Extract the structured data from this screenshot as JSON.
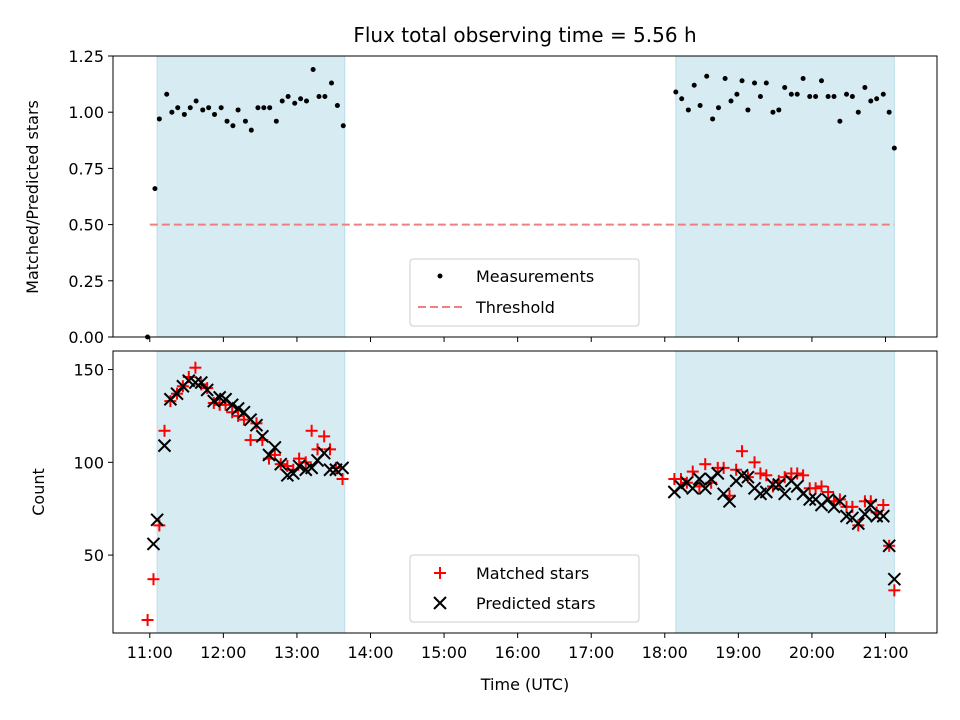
{
  "chart_data": [
    {
      "type": "scatter",
      "title": "Flux total observing time = 5.56 h",
      "ylabel": "Matched/Predicted stars",
      "xlabel": "",
      "ylim": [
        0,
        1.25
      ],
      "yticks": [
        "0.00",
        "0.25",
        "0.50",
        "0.75",
        "1.00",
        "1.25"
      ],
      "ytick_values": [
        0,
        0.25,
        0.5,
        0.75,
        1.0,
        1.25
      ],
      "shaded_intervals": [
        [
          11.1,
          13.65
        ],
        [
          18.15,
          21.12
        ]
      ],
      "threshold": {
        "label": "Threshold",
        "value": 0.5,
        "x_range": [
          11.0,
          21.12
        ],
        "color": "#f08080"
      },
      "legend": {
        "position": "bottom-center",
        "entries": [
          "Measurements",
          "Threshold"
        ]
      },
      "series": [
        {
          "name": "Measurements",
          "color": "#000000",
          "points": [
            [
              10.97,
              0.0
            ],
            [
              11.07,
              0.66
            ],
            [
              11.13,
              0.97
            ],
            [
              11.23,
              1.08
            ],
            [
              11.3,
              1.0
            ],
            [
              11.38,
              1.02
            ],
            [
              11.47,
              0.99
            ],
            [
              11.55,
              1.02
            ],
            [
              11.63,
              1.05
            ],
            [
              11.72,
              1.01
            ],
            [
              11.8,
              1.02
            ],
            [
              11.88,
              0.99
            ],
            [
              11.97,
              1.02
            ],
            [
              12.05,
              0.96
            ],
            [
              12.13,
              0.94
            ],
            [
              12.2,
              1.01
            ],
            [
              12.3,
              0.96
            ],
            [
              12.38,
              0.92
            ],
            [
              12.47,
              1.02
            ],
            [
              12.55,
              1.02
            ],
            [
              12.63,
              1.02
            ],
            [
              12.72,
              0.96
            ],
            [
              12.8,
              1.05
            ],
            [
              12.88,
              1.07
            ],
            [
              12.97,
              1.04
            ],
            [
              13.05,
              1.06
            ],
            [
              13.13,
              1.05
            ],
            [
              13.22,
              1.19
            ],
            [
              13.3,
              1.07
            ],
            [
              13.38,
              1.07
            ],
            [
              13.47,
              1.13
            ],
            [
              13.55,
              1.03
            ],
            [
              13.63,
              0.94
            ],
            [
              18.15,
              1.09
            ],
            [
              18.23,
              1.06
            ],
            [
              18.32,
              1.01
            ],
            [
              18.4,
              1.12
            ],
            [
              18.48,
              1.03
            ],
            [
              18.57,
              1.16
            ],
            [
              18.65,
              0.97
            ],
            [
              18.73,
              1.02
            ],
            [
              18.82,
              1.15
            ],
            [
              18.9,
              1.05
            ],
            [
              18.98,
              1.08
            ],
            [
              19.05,
              1.14
            ],
            [
              19.13,
              1.01
            ],
            [
              19.22,
              1.13
            ],
            [
              19.3,
              1.07
            ],
            [
              19.38,
              1.13
            ],
            [
              19.47,
              1.0
            ],
            [
              19.55,
              1.01
            ],
            [
              19.63,
              1.11
            ],
            [
              19.72,
              1.08
            ],
            [
              19.8,
              1.08
            ],
            [
              19.88,
              1.15
            ],
            [
              19.97,
              1.07
            ],
            [
              20.05,
              1.07
            ],
            [
              20.13,
              1.14
            ],
            [
              20.22,
              1.07
            ],
            [
              20.3,
              1.07
            ],
            [
              20.38,
              0.96
            ],
            [
              20.47,
              1.08
            ],
            [
              20.55,
              1.07
            ],
            [
              20.63,
              1.0
            ],
            [
              20.72,
              1.11
            ],
            [
              20.8,
              1.05
            ],
            [
              20.88,
              1.06
            ],
            [
              20.97,
              1.08
            ],
            [
              21.05,
              1.0
            ],
            [
              21.12,
              0.84
            ]
          ]
        }
      ]
    },
    {
      "type": "scatter",
      "title": "",
      "ylabel": "Count",
      "xlabel": "Time (UTC)",
      "ylim": [
        8,
        160
      ],
      "xlim": [
        10.5,
        21.7
      ],
      "yticks": [
        "50",
        "100",
        "150"
      ],
      "ytick_values": [
        50,
        100,
        150
      ],
      "xticks": [
        "11:00",
        "12:00",
        "13:00",
        "14:00",
        "15:00",
        "16:00",
        "17:00",
        "18:00",
        "19:00",
        "20:00",
        "21:00"
      ],
      "xtick_values": [
        11,
        12,
        13,
        14,
        15,
        16,
        17,
        18,
        19,
        20,
        21
      ],
      "shaded_intervals": [
        [
          11.1,
          13.65
        ],
        [
          18.15,
          21.12
        ]
      ],
      "legend": {
        "position": "bottom-center",
        "entries": [
          "Matched stars",
          "Predicted stars"
        ]
      },
      "series": [
        {
          "name": "Matched stars",
          "marker": "+",
          "color": "#ff0000",
          "points": [
            [
              10.97,
              15
            ],
            [
              11.05,
              37
            ],
            [
              11.13,
              66
            ],
            [
              11.2,
              117
            ],
            [
              11.28,
              133
            ],
            [
              11.37,
              137
            ],
            [
              11.45,
              141
            ],
            [
              11.53,
              146
            ],
            [
              11.62,
              151
            ],
            [
              11.7,
              142
            ],
            [
              11.78,
              140
            ],
            [
              11.87,
              132
            ],
            [
              11.95,
              131
            ],
            [
              12.03,
              131
            ],
            [
              12.12,
              127
            ],
            [
              12.2,
              125
            ],
            [
              12.28,
              123
            ],
            [
              12.37,
              112
            ],
            [
              12.45,
              121
            ],
            [
              12.53,
              112
            ],
            [
              12.62,
              102
            ],
            [
              12.7,
              104
            ],
            [
              12.78,
              99
            ],
            [
              12.87,
              98
            ],
            [
              12.95,
              96
            ],
            [
              13.03,
              102
            ],
            [
              13.12,
              100
            ],
            [
              13.2,
              117
            ],
            [
              13.28,
              107
            ],
            [
              13.37,
              114
            ],
            [
              13.45,
              107
            ],
            [
              13.53,
              97
            ],
            [
              13.62,
              91
            ],
            [
              18.13,
              91
            ],
            [
              18.22,
              91
            ],
            [
              18.3,
              89
            ],
            [
              18.38,
              95
            ],
            [
              18.47,
              87
            ],
            [
              18.55,
              99
            ],
            [
              18.63,
              89
            ],
            [
              18.72,
              97
            ],
            [
              18.8,
              97
            ],
            [
              18.88,
              82
            ],
            [
              18.97,
              96
            ],
            [
              19.05,
              106
            ],
            [
              19.13,
              92
            ],
            [
              19.22,
              100
            ],
            [
              19.3,
              94
            ],
            [
              19.38,
              93
            ],
            [
              19.47,
              87
            ],
            [
              19.55,
              90
            ],
            [
              19.63,
              92
            ],
            [
              19.72,
              94
            ],
            [
              19.8,
              94
            ],
            [
              19.88,
              93
            ],
            [
              19.97,
              86
            ],
            [
              20.05,
              86
            ],
            [
              20.13,
              87
            ],
            [
              20.22,
              84
            ],
            [
              20.3,
              79
            ],
            [
              20.38,
              80
            ],
            [
              20.47,
              76
            ],
            [
              20.55,
              76
            ],
            [
              20.63,
              66
            ],
            [
              20.72,
              79
            ],
            [
              20.8,
              79
            ],
            [
              20.88,
              73
            ],
            [
              20.97,
              77
            ],
            [
              21.05,
              55
            ],
            [
              21.12,
              31
            ]
          ]
        },
        {
          "name": "Predicted stars",
          "marker": "x",
          "color": "#000000",
          "points": [
            [
              11.05,
              56
            ],
            [
              11.1,
              69
            ],
            [
              11.2,
              109
            ],
            [
              11.28,
              134
            ],
            [
              11.37,
              137
            ],
            [
              11.45,
              141
            ],
            [
              11.53,
              144
            ],
            [
              11.62,
              143
            ],
            [
              11.7,
              143
            ],
            [
              11.78,
              139
            ],
            [
              11.87,
              133
            ],
            [
              11.95,
              135
            ],
            [
              12.03,
              134
            ],
            [
              12.12,
              131
            ],
            [
              12.2,
              129
            ],
            [
              12.28,
              127
            ],
            [
              12.37,
              123
            ],
            [
              12.45,
              120
            ],
            [
              12.53,
              114
            ],
            [
              12.62,
              104
            ],
            [
              12.7,
              108
            ],
            [
              12.78,
              99
            ],
            [
              12.87,
              93
            ],
            [
              12.95,
              94
            ],
            [
              13.03,
              98
            ],
            [
              13.12,
              96
            ],
            [
              13.2,
              97
            ],
            [
              13.28,
              101
            ],
            [
              13.37,
              105
            ],
            [
              13.45,
              96
            ],
            [
              13.53,
              96
            ],
            [
              13.62,
              97
            ],
            [
              18.13,
              84
            ],
            [
              18.22,
              87
            ],
            [
              18.3,
              89
            ],
            [
              18.38,
              86
            ],
            [
              18.47,
              91
            ],
            [
              18.55,
              86
            ],
            [
              18.63,
              91
            ],
            [
              18.72,
              94
            ],
            [
              18.8,
              83
            ],
            [
              18.88,
              79
            ],
            [
              18.97,
              90
            ],
            [
              19.05,
              93
            ],
            [
              19.13,
              92
            ],
            [
              19.22,
              86
            ],
            [
              19.3,
              83
            ],
            [
              19.38,
              84
            ],
            [
              19.47,
              88
            ],
            [
              19.55,
              88
            ],
            [
              19.63,
              83
            ],
            [
              19.72,
              90
            ],
            [
              19.8,
              87
            ],
            [
              19.88,
              83
            ],
            [
              19.97,
              80
            ],
            [
              20.05,
              80
            ],
            [
              20.13,
              77
            ],
            [
              20.22,
              80
            ],
            [
              20.3,
              76
            ],
            [
              20.38,
              79
            ],
            [
              20.47,
              71
            ],
            [
              20.55,
              70
            ],
            [
              20.63,
              67
            ],
            [
              20.72,
              72
            ],
            [
              20.8,
              77
            ],
            [
              20.88,
              71
            ],
            [
              20.97,
              71
            ],
            [
              21.05,
              55
            ],
            [
              21.12,
              37
            ]
          ]
        }
      ]
    }
  ]
}
